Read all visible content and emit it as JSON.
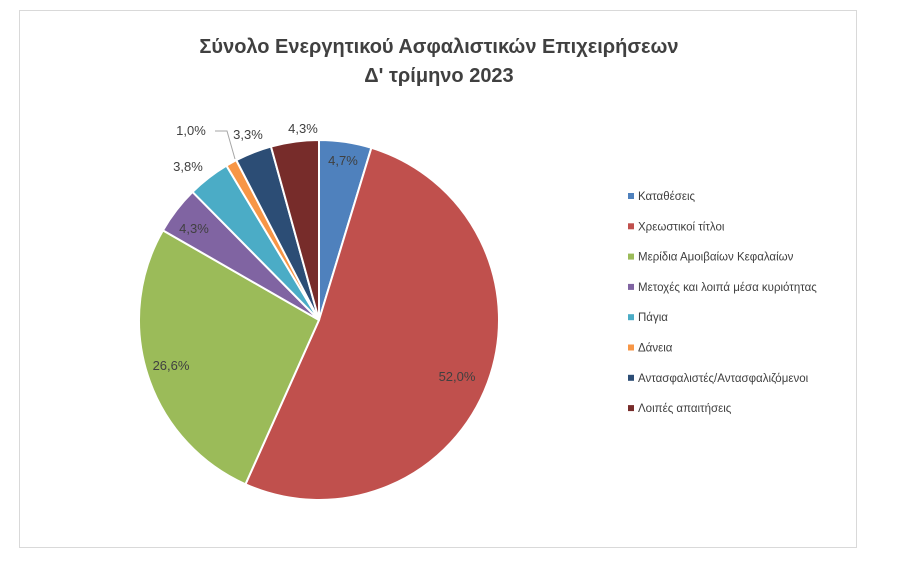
{
  "chart_data": {
    "type": "pie",
    "title": "Σύνολο Ενεργητικού Ασφαλιστικών Επιχειρήσεων",
    "subtitle": "Δ' τρίμηνο 2023",
    "legend_position": "right",
    "categories": [
      "Καταθέσεις",
      "Χρεωστικοί τίτλοι",
      "Μερίδια Αμοιβαίων Κεφαλαίων",
      "Μετοχές και λοιπά μέσα κυριότητας",
      "Πάγια",
      "Δάνεια",
      "Αντασφαλιστές/Αντασφαλιζόμενοι",
      "Λοιπές απαιτήσεις"
    ],
    "values": [
      4.7,
      52.0,
      26.6,
      4.3,
      3.8,
      1.0,
      3.3,
      4.3
    ],
    "labels": [
      "4,7%",
      "52,0%",
      "26,6%",
      "4,3%",
      "3,8%",
      "1,0%",
      "3,3%",
      "4,3%"
    ],
    "colors": [
      "#4f81bd",
      "#c0504d",
      "#9bbb59",
      "#8064a2",
      "#4bacc6",
      "#f79646",
      "#2c4d75",
      "#772c2a"
    ]
  }
}
